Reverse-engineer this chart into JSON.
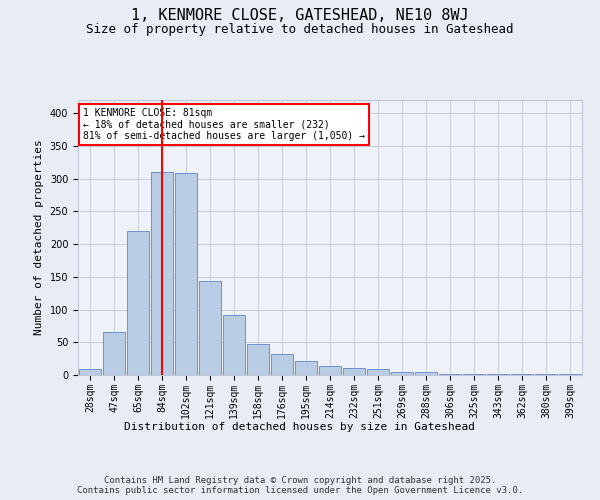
{
  "title": "1, KENMORE CLOSE, GATESHEAD, NE10 8WJ",
  "subtitle": "Size of property relative to detached houses in Gateshead",
  "xlabel": "Distribution of detached houses by size in Gateshead",
  "ylabel": "Number of detached properties",
  "categories": [
    "28sqm",
    "47sqm",
    "65sqm",
    "84sqm",
    "102sqm",
    "121sqm",
    "139sqm",
    "158sqm",
    "176sqm",
    "195sqm",
    "214sqm",
    "232sqm",
    "251sqm",
    "269sqm",
    "288sqm",
    "306sqm",
    "325sqm",
    "343sqm",
    "362sqm",
    "380sqm",
    "399sqm"
  ],
  "bar_values": [
    9,
    65,
    220,
    310,
    308,
    143,
    91,
    48,
    32,
    22,
    14,
    11,
    9,
    5,
    4,
    2,
    1,
    1,
    1,
    1,
    1
  ],
  "bar_color": "#b8cce4",
  "bar_edge_color": "#4472c4",
  "vline_x": 3,
  "vline_color": "#ff0000",
  "annotation_box_text": "1 KENMORE CLOSE: 81sqm\n← 18% of detached houses are smaller (232)\n81% of semi-detached houses are larger (1,050) →",
  "annotation_box_color": "#ff0000",
  "annotation_box_fill": "#ffffff",
  "ylim": [
    0,
    420
  ],
  "yticks": [
    0,
    50,
    100,
    150,
    200,
    250,
    300,
    350,
    400
  ],
  "grid_color": "#c0c8d8",
  "background_color": "#e8edf5",
  "plot_bg_color": "#eef1f8",
  "footer_text": "Contains HM Land Registry data © Crown copyright and database right 2025.\nContains public sector information licensed under the Open Government Licence v3.0.",
  "title_fontsize": 11,
  "subtitle_fontsize": 9,
  "label_fontsize": 8,
  "tick_fontsize": 7,
  "footer_fontsize": 6.5,
  "annotation_fontsize": 7
}
